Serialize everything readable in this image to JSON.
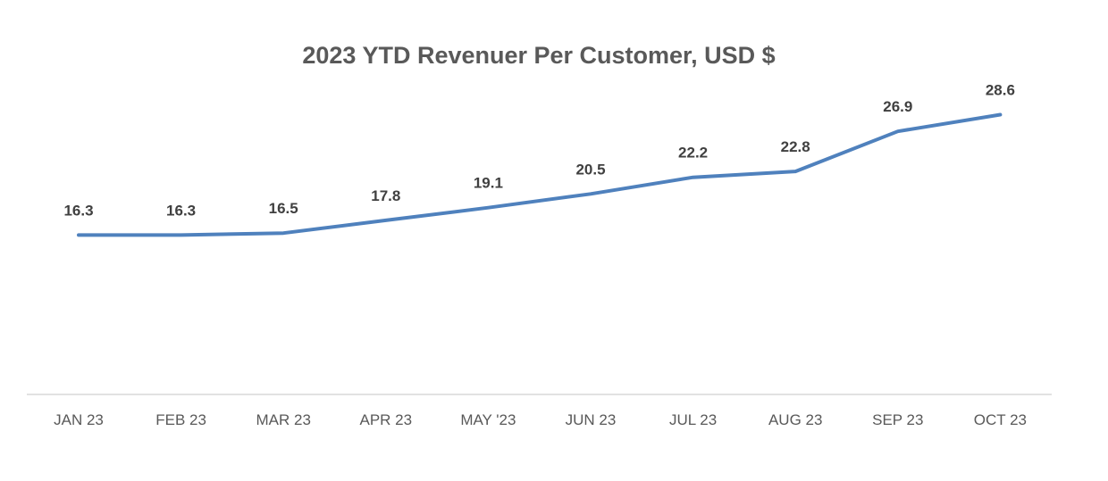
{
  "chart_data": {
    "type": "line",
    "title": "2023 YTD Revenuer Per Customer, USD $",
    "xlabel": "",
    "ylabel": "",
    "categories": [
      "JAN 23",
      "FEB 23",
      "MAR 23",
      "APR 23",
      "MAY '23",
      "JUN 23",
      "JUL 23",
      "AUG 23",
      "SEP 23",
      "OCT 23"
    ],
    "series": [
      {
        "values": [
          16.3,
          16.3,
          16.5,
          17.8,
          19.1,
          20.5,
          22.2,
          22.8,
          26.9,
          28.6
        ],
        "data_labels": [
          "16.3",
          "16.3",
          "16.5",
          "17.8",
          "19.1",
          "20.5",
          "22.2",
          "22.8",
          "26.9",
          "28.6"
        ],
        "color": "#4f81bd"
      }
    ],
    "ylim": [
      0,
      31
    ],
    "grid": false,
    "legend": "none",
    "colors": {
      "line": "#4f81bd",
      "axis": "#d9d9d9",
      "title": "#595959",
      "data_label": "#404040",
      "tick_label": "#595959"
    }
  }
}
